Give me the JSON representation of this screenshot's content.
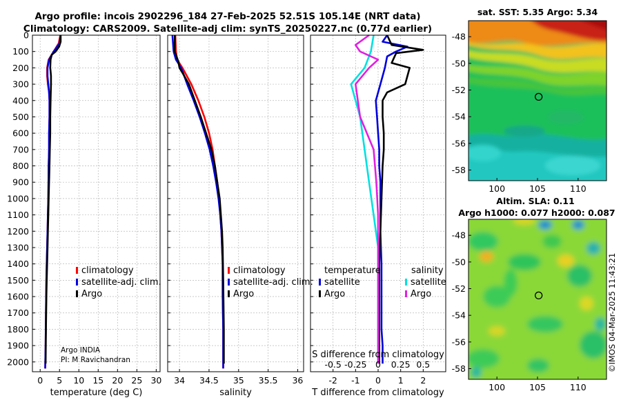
{
  "title": {
    "line1": "Argo profile: incois 2902296_184 27-Feb-2025 52.51S 105.14E (NRT data)",
    "line2": "Climatology: CARS2009. Satellite-adj clim: synTS_20250227.nc (0.77d earlier)"
  },
  "colors": {
    "climatology": "#ff0000",
    "satellite": "#0000dd",
    "argo": "#000000",
    "sal_sat": "#00e0e0",
    "sal_argo": "#e020e0"
  },
  "legend": {
    "climatology": "climatology",
    "satellite_adj": "satellite-adj. clim.",
    "argo": "Argo",
    "diff_temp_header": "temperature",
    "diff_sal_header": "salinity",
    "satellite": "satellite"
  },
  "credit": {
    "line1": "Argo INDIA",
    "line2": "PI: M Ravichandran"
  },
  "sst_map": {
    "title": "sat. SST: 5.35 Argo: 5.34",
    "float_lon": 105.14,
    "float_lat": -52.51
  },
  "sla_map": {
    "title1": "Altim. SLA: 0.11",
    "title2": "Argo h1000: 0.077 h2000: 0.087",
    "float_lon": 105.14,
    "float_lat": -52.51
  },
  "watermark": "©IMOS 04-Mar-2025 11:43:21",
  "chart_data": [
    {
      "type": "line",
      "name": "temperature",
      "xlabel": "temperature (deg C)",
      "ylabel": "",
      "xlim": [
        -2,
        31
      ],
      "ylim": [
        2060,
        0
      ],
      "xticks": [
        0,
        5,
        10,
        15,
        20,
        25,
        30
      ],
      "yticks": [
        0,
        100,
        200,
        300,
        400,
        500,
        600,
        700,
        800,
        900,
        1000,
        1100,
        1200,
        1300,
        1400,
        1500,
        1600,
        1700,
        1800,
        1900,
        2000
      ],
      "grid": true,
      "series": [
        {
          "name": "climatology",
          "color": "#ff0000",
          "x": [
            5.2,
            4.8,
            3.5,
            2.2,
            1.8,
            1.8,
            2.0,
            2.3,
            2.4,
            2.4,
            2.3,
            2.3,
            2.2,
            2.1,
            2.0,
            1.9,
            1.8,
            1.7,
            1.6,
            1.5,
            1.4,
            1.3
          ],
          "y": [
            0,
            50,
            100,
            150,
            200,
            250,
            300,
            350,
            400,
            500,
            600,
            700,
            800,
            1000,
            1100,
            1200,
            1300,
            1400,
            1500,
            1700,
            1900,
            2040
          ]
        },
        {
          "name": "satellite-adj. clim.",
          "color": "#0000dd",
          "x": [
            5.3,
            5.0,
            3.5,
            2.3,
            1.9,
            1.9,
            2.1,
            2.3,
            2.4,
            2.4,
            2.3,
            2.3,
            2.2,
            2.1,
            2.0,
            1.9,
            1.8,
            1.7,
            1.6,
            1.5,
            1.4,
            1.3
          ],
          "y": [
            0,
            50,
            100,
            150,
            200,
            250,
            300,
            350,
            400,
            500,
            600,
            700,
            800,
            1000,
            1100,
            1200,
            1300,
            1400,
            1500,
            1700,
            1900,
            2040
          ]
        },
        {
          "name": "Argo",
          "color": "#000000",
          "x": [
            5.3,
            5.3,
            4.9,
            4.0,
            3.0,
            2.7,
            2.6,
            2.7,
            2.8,
            2.8,
            2.7,
            2.6,
            2.6,
            2.5,
            2.4,
            2.3,
            2.2,
            2.1,
            2.0,
            1.9,
            1.8,
            1.7,
            1.6,
            1.5,
            1.4
          ],
          "y": [
            0,
            40,
            70,
            100,
            120,
            150,
            200,
            220,
            250,
            300,
            400,
            500,
            600,
            700,
            800,
            900,
            1000,
            1100,
            1200,
            1300,
            1400,
            1500,
            1600,
            1800,
            2010
          ]
        }
      ]
    },
    {
      "type": "line",
      "name": "salinity",
      "xlabel": "salinity",
      "ylabel": "",
      "xlim": [
        33.8,
        36.1
      ],
      "ylim": [
        2060,
        0
      ],
      "xticks": [
        34,
        34.5,
        35,
        35.5,
        36
      ],
      "grid": true,
      "series": [
        {
          "name": "climatology",
          "color": "#ff0000",
          "x": [
            33.93,
            33.94,
            33.96,
            34.05,
            34.2,
            34.32,
            34.42,
            34.5,
            34.56,
            34.6,
            34.64,
            34.67,
            34.69,
            34.71,
            34.72,
            34.73,
            34.73,
            34.74,
            34.74
          ],
          "y": [
            0,
            100,
            150,
            200,
            300,
            400,
            500,
            600,
            700,
            800,
            900,
            1000,
            1100,
            1200,
            1300,
            1400,
            1600,
            1800,
            2040
          ]
        },
        {
          "name": "satellite-adj. clim.",
          "color": "#0000dd",
          "x": [
            33.88,
            33.9,
            33.94,
            34.03,
            34.13,
            34.24,
            34.34,
            34.43,
            34.51,
            34.57,
            34.62,
            34.66,
            34.69,
            34.71,
            34.72,
            34.73,
            34.73,
            34.74,
            34.74
          ],
          "y": [
            0,
            100,
            150,
            200,
            300,
            400,
            500,
            600,
            700,
            800,
            900,
            1000,
            1100,
            1200,
            1300,
            1400,
            1600,
            1800,
            2040
          ]
        },
        {
          "name": "Argo",
          "color": "#000000",
          "x": [
            33.92,
            33.92,
            33.95,
            33.98,
            34.0,
            34.05,
            34.16,
            34.26,
            34.36,
            34.45,
            34.54,
            34.6,
            34.64,
            34.68,
            34.7,
            34.72,
            34.73,
            34.74,
            34.75,
            34.75
          ],
          "y": [
            0,
            100,
            130,
            160,
            200,
            230,
            300,
            400,
            500,
            600,
            700,
            800,
            900,
            1000,
            1100,
            1200,
            1300,
            1500,
            1800,
            2010
          ]
        }
      ]
    },
    {
      "type": "line",
      "name": "difference from climatology",
      "xlabel": "T difference from climatology",
      "xlabel_top": "S difference from climatology",
      "xlim": [
        -3,
        3
      ],
      "ylim": [
        2060,
        0
      ],
      "xticks": [
        -2,
        -1,
        0,
        1,
        2
      ],
      "xticks_top": [
        -0.5,
        -0.25,
        0,
        0.25,
        0.5
      ],
      "xticks_top_labels": [
        "-0.5",
        "-0.25",
        "0",
        "0.25",
        "0.5"
      ],
      "grid": true,
      "series": [
        {
          "name": "temperature satellite",
          "color": "#0000dd",
          "x": [
            0.4,
            0.2,
            1.3,
            0.8,
            0.4,
            0.3,
            0.1,
            -0.1,
            -0.05,
            0.0,
            0.05,
            0.05,
            0.1,
            0.1,
            0.1,
            0.15,
            0.15,
            0.15,
            0.2,
            0.2
          ],
          "y": [
            0,
            40,
            70,
            100,
            130,
            200,
            300,
            400,
            500,
            600,
            700,
            800,
            900,
            1000,
            1200,
            1400,
            1600,
            1800,
            1900,
            2010
          ]
        },
        {
          "name": "temperature Argo",
          "color": "#000000",
          "x": [
            0.4,
            0.6,
            2.0,
            0.8,
            0.6,
            1.4,
            1.2,
            0.4,
            0.2,
            0.2,
            0.25,
            0.25,
            0.2,
            0.15,
            0.1,
            0.05,
            0.05,
            0.05,
            0.05,
            0.05
          ],
          "y": [
            0,
            60,
            90,
            110,
            170,
            200,
            300,
            350,
            400,
            500,
            600,
            700,
            800,
            1000,
            1200,
            1400,
            1600,
            1800,
            1900,
            2010
          ]
        },
        {
          "name": "salinity satellite",
          "color": "#00e0e0",
          "x": [
            -0.05,
            -0.08,
            -0.15,
            -0.3,
            -0.25,
            -0.2,
            -0.15,
            -0.1,
            -0.05,
            0.0,
            0.0,
            0.0,
            0.0
          ],
          "y": [
            0,
            100,
            200,
            300,
            400,
            500,
            700,
            900,
            1100,
            1300,
            1500,
            1800,
            2010
          ]
        },
        {
          "name": "salinity Argo",
          "color": "#e020e0",
          "x": [
            -0.1,
            -0.25,
            -0.2,
            0.0,
            -0.1,
            -0.25,
            -0.2,
            -0.05,
            -0.02,
            0.0,
            0.0,
            0.0,
            0.0
          ],
          "y": [
            0,
            60,
            100,
            150,
            200,
            300,
            500,
            700,
            900,
            1100,
            1400,
            1700,
            2010
          ]
        }
      ]
    },
    {
      "type": "heatmap",
      "name": "sat. SST map",
      "title": "sat. SST: 5.35 Argo: 5.34",
      "xlim": [
        96.5,
        113.5
      ],
      "ylim": [
        -58.8,
        -46.8
      ],
      "xticks": [
        100,
        105,
        110
      ],
      "yticks": [
        -48,
        -50,
        -52,
        -54,
        -56,
        -58
      ],
      "float_position": [
        105.14,
        -52.51
      ]
    },
    {
      "type": "heatmap",
      "name": "altimetry SLA map",
      "title": "Altim. SLA: 0.11",
      "xlim": [
        96.5,
        113.5
      ],
      "ylim": [
        -58.8,
        -46.8
      ],
      "xticks": [
        100,
        105,
        110
      ],
      "yticks": [
        -48,
        -50,
        -52,
        -54,
        -56,
        -58
      ],
      "float_position": [
        105.14,
        -52.51
      ]
    }
  ]
}
